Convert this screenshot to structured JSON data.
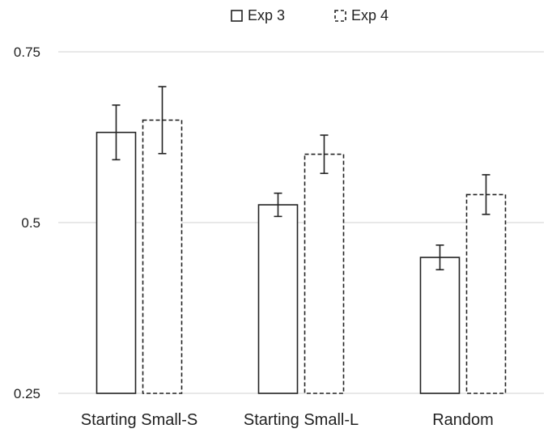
{
  "chart_data": {
    "type": "bar",
    "categories": [
      "Starting Small-S",
      "Starting Small-L",
      "Random"
    ],
    "series": [
      {
        "name": "Exp 3",
        "style": "solid",
        "values": [
          0.632,
          0.526,
          0.449
        ],
        "error": [
          0.04,
          0.017,
          0.018
        ]
      },
      {
        "name": "Exp 4",
        "style": "dashed",
        "values": [
          0.65,
          0.6,
          0.541
        ],
        "error": [
          0.049,
          0.028,
          0.029
        ]
      }
    ],
    "y_ticks": [
      "0.25",
      "0.5",
      "0.75"
    ],
    "ylim": [
      0.25,
      0.75
    ],
    "grid": true,
    "legend_position": "top-center",
    "title": "",
    "xlabel": "",
    "ylabel": ""
  },
  "colors": {
    "bar_stroke": "#222222",
    "bar_fill": "#ffffff",
    "grid": "#d9d9d9",
    "text": "#222222"
  }
}
